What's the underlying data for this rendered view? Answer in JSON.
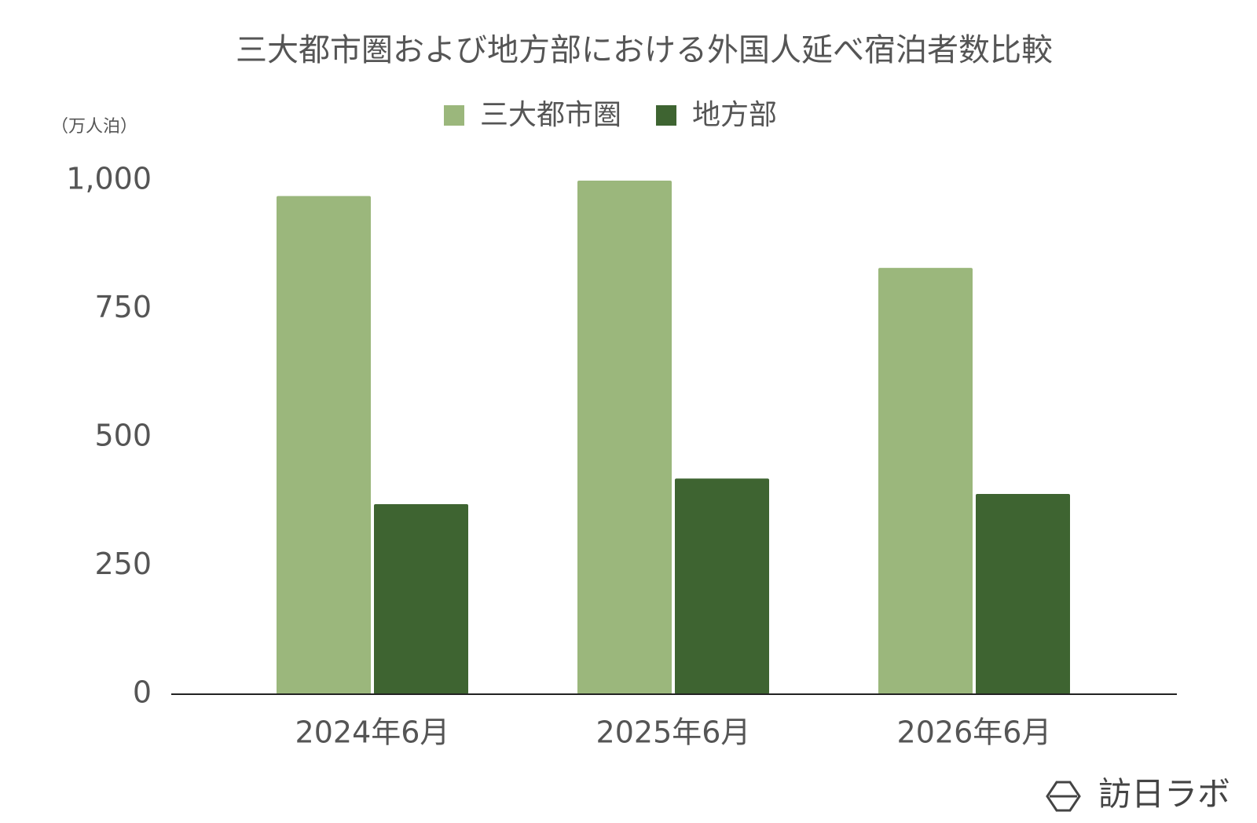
{
  "chart_data": {
    "type": "bar",
    "title": "三大都市圏および地方部における外国人延べ宿泊者数比較",
    "y_label": "（万人泊）",
    "categories": [
      "2024年6月",
      "2025年6月",
      "2026年6月"
    ],
    "series": [
      {
        "name": "三大都市圏",
        "color": "#9bb77c",
        "values": [
          970,
          1000,
          830
        ]
      },
      {
        "name": "地方部",
        "color": "#3e6431",
        "values": [
          370,
          420,
          390
        ]
      }
    ],
    "ylim": [
      0,
      1000
    ],
    "yticks": [
      0,
      250,
      500,
      750,
      {
        "value": 1000,
        "label": "1,000"
      }
    ],
    "grid": false,
    "legend": "top",
    "watermark": "訪日ラボ"
  }
}
